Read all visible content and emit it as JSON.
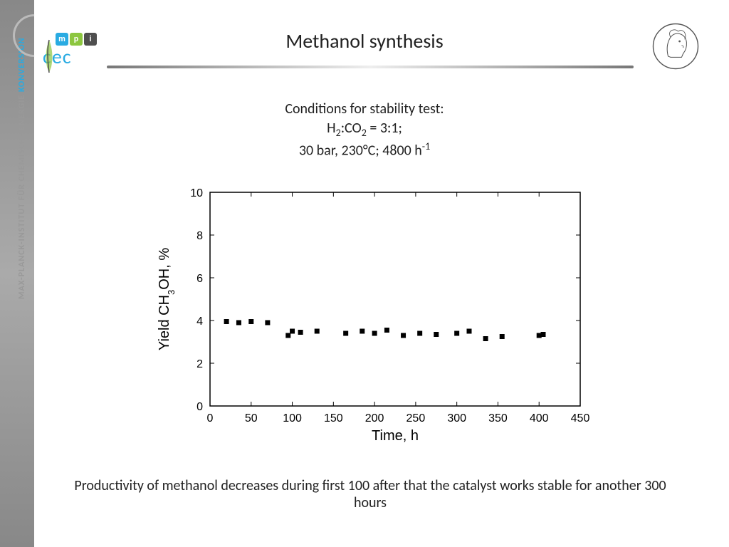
{
  "sidebar": {
    "institute_text": "MAX-PLANCK-INSTITUT  FÜR  CHEMISCHE  ENERGIE ",
    "konversion": "KONVERSION"
  },
  "logo": {
    "mpi_letters": [
      "m",
      "p",
      "i"
    ],
    "mpi_colors": [
      "#29abe2",
      "#8cc63f",
      "#4f4f4f"
    ],
    "cec_text": "cec"
  },
  "title": "Methanol synthesis",
  "conditions": {
    "line1": "Conditions for stability test:",
    "line2_part1": "H",
    "line2_sub1": "2",
    "line2_part2": ":CO",
    "line2_sub2": "2",
    "line2_part3": " = 3:1;",
    "line3_part1": "30 bar, 230°C; 4800 h",
    "line3_sup": "-1"
  },
  "chart": {
    "type": "scatter",
    "xlabel": "Time, h",
    "ylabel_part1": "Yield CH",
    "ylabel_sub": "3",
    "ylabel_part2": "OH, %",
    "xlim": [
      0,
      450
    ],
    "ylim": [
      0,
      10
    ],
    "xticks": [
      0,
      50,
      100,
      150,
      200,
      250,
      300,
      350,
      400,
      450
    ],
    "yticks": [
      0,
      2,
      4,
      6,
      8,
      10
    ],
    "marker": "square",
    "marker_size": 7,
    "marker_color": "#000000",
    "axis_color": "#000000",
    "background": "#ffffff",
    "label_fontsize": 20,
    "tick_fontsize": 16,
    "tick_len_major": 6,
    "data": [
      {
        "x": 20,
        "y": 3.95
      },
      {
        "x": 35,
        "y": 3.9
      },
      {
        "x": 50,
        "y": 3.95
      },
      {
        "x": 70,
        "y": 3.9
      },
      {
        "x": 95,
        "y": 3.3
      },
      {
        "x": 100,
        "y": 3.5
      },
      {
        "x": 110,
        "y": 3.45
      },
      {
        "x": 130,
        "y": 3.5
      },
      {
        "x": 165,
        "y": 3.4
      },
      {
        "x": 185,
        "y": 3.5
      },
      {
        "x": 200,
        "y": 3.4
      },
      {
        "x": 215,
        "y": 3.55
      },
      {
        "x": 235,
        "y": 3.3
      },
      {
        "x": 255,
        "y": 3.4
      },
      {
        "x": 275,
        "y": 3.35
      },
      {
        "x": 300,
        "y": 3.4
      },
      {
        "x": 315,
        "y": 3.5
      },
      {
        "x": 335,
        "y": 3.15
      },
      {
        "x": 355,
        "y": 3.25
      },
      {
        "x": 400,
        "y": 3.3
      },
      {
        "x": 405,
        "y": 3.35
      }
    ]
  },
  "note": "Productivity of methanol decreases during first 100 after that the catalyst works stable for another 300 hours"
}
